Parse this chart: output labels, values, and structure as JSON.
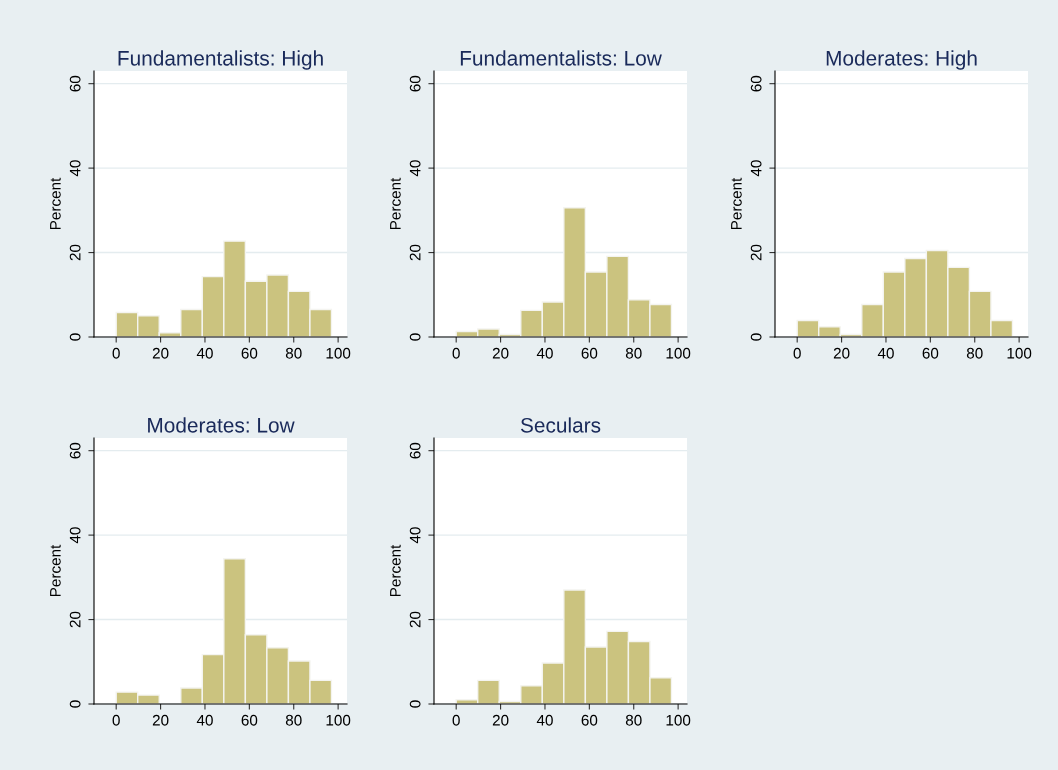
{
  "chart_data": [
    {
      "type": "histogram",
      "title": "Fundamentalists: High",
      "ylabel": "Percent",
      "bins": [
        0,
        9.7,
        19.4,
        29.1,
        38.8,
        48.5,
        58.2,
        67.9,
        77.6,
        87.3,
        97
      ],
      "values": [
        5.8,
        5.0,
        1.0,
        6.5,
        14.3,
        22.7,
        13.2,
        14.7,
        10.8,
        6.5
      ],
      "color": "#cbc37f",
      "xlim": [
        -10,
        104
      ],
      "xticks": [
        0,
        20,
        40,
        60,
        80,
        100
      ],
      "ylim": [
        0,
        63
      ],
      "yticks": [
        0,
        20,
        40,
        60
      ],
      "grid": "y"
    },
    {
      "type": "histogram",
      "title": "Fundamentalists: Low",
      "ylabel": "Percent",
      "bins": [
        0,
        9.7,
        19.4,
        29.1,
        38.8,
        48.5,
        58.2,
        67.9,
        77.6,
        87.3,
        97
      ],
      "values": [
        1.3,
        1.9,
        0.6,
        6.3,
        8.3,
        30.6,
        15.4,
        19.1,
        8.8,
        7.7
      ],
      "color": "#cbc37f",
      "xlim": [
        -10,
        104
      ],
      "xticks": [
        0,
        20,
        40,
        60,
        80,
        100
      ],
      "ylim": [
        0,
        63
      ],
      "yticks": [
        0,
        20,
        40,
        60
      ],
      "grid": "y"
    },
    {
      "type": "histogram",
      "title": "Moderates: High",
      "ylabel": "Percent",
      "bins": [
        0,
        9.7,
        19.4,
        29.1,
        38.8,
        48.5,
        58.2,
        67.9,
        77.6,
        87.3,
        97
      ],
      "values": [
        3.9,
        2.4,
        0.6,
        7.7,
        15.4,
        18.6,
        20.5,
        16.5,
        10.8,
        3.9
      ],
      "color": "#cbc37f",
      "xlim": [
        -10,
        104
      ],
      "xticks": [
        0,
        20,
        40,
        60,
        80,
        100
      ],
      "ylim": [
        0,
        63
      ],
      "yticks": [
        0,
        20,
        40,
        60
      ],
      "grid": "y"
    },
    {
      "type": "histogram",
      "title": "Moderates: Low",
      "ylabel": "Percent",
      "bins": [
        0,
        9.7,
        19.4,
        29.1,
        38.8,
        48.5,
        58.2,
        67.9,
        77.6,
        87.3,
        97
      ],
      "values": [
        2.8,
        2.1,
        0,
        3.8,
        11.7,
        34.4,
        16.4,
        13.3,
        10.2,
        5.6
      ],
      "color": "#cbc37f",
      "xlim": [
        -10,
        104
      ],
      "xticks": [
        0,
        20,
        40,
        60,
        80,
        100
      ],
      "ylim": [
        0,
        63
      ],
      "yticks": [
        0,
        20,
        40,
        60
      ],
      "grid": "y"
    },
    {
      "type": "histogram",
      "title": "Seculars",
      "ylabel": "Percent",
      "bins": [
        0,
        9.7,
        19.4,
        29.1,
        38.8,
        48.5,
        58.2,
        67.9,
        77.6,
        87.3,
        97
      ],
      "values": [
        1.0,
        5.6,
        0.6,
        4.3,
        9.7,
        27.0,
        13.5,
        17.2,
        14.8,
        6.2
      ],
      "color": "#cbc37f",
      "xlim": [
        -10,
        104
      ],
      "xticks": [
        0,
        20,
        40,
        60,
        80,
        100
      ],
      "ylim": [
        0,
        63
      ],
      "yticks": [
        0,
        20,
        40,
        60
      ],
      "grid": "y"
    }
  ]
}
